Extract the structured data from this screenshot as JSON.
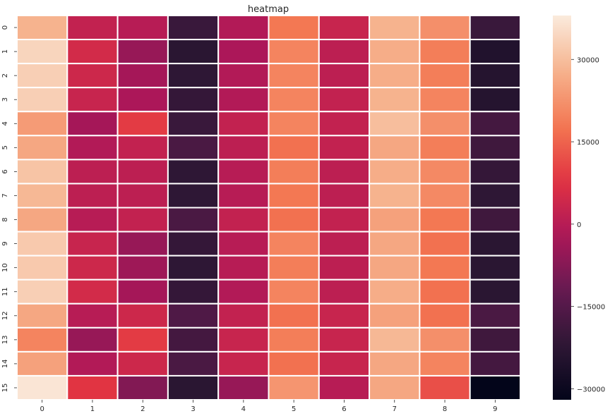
{
  "chart_data": {
    "type": "heatmap",
    "title": "heatmap",
    "xlabel": "",
    "ylabel": "",
    "x_categories": [
      "0",
      "1",
      "2",
      "3",
      "4",
      "5",
      "6",
      "7",
      "8",
      "9"
    ],
    "y_categories": [
      "0",
      "1",
      "2",
      "3",
      "4",
      "5",
      "6",
      "7",
      "8",
      "9",
      "10",
      "11",
      "12",
      "13",
      "14",
      "15"
    ],
    "values": [
      [
        28000,
        2000,
        0,
        -20000,
        -1000,
        18000,
        3000,
        28000,
        22000,
        -20000
      ],
      [
        34000,
        5000,
        -5000,
        -23000,
        -2000,
        20000,
        1000,
        27000,
        19000,
        -25000
      ],
      [
        33000,
        4000,
        -3000,
        -22000,
        -1000,
        20000,
        1000,
        27000,
        19000,
        -24000
      ],
      [
        33000,
        3000,
        -2000,
        -21000,
        -1000,
        20000,
        2000,
        28000,
        20000,
        -24000
      ],
      [
        24000,
        -3000,
        9000,
        -20000,
        2000,
        20000,
        2000,
        30000,
        22000,
        -18000
      ],
      [
        26000,
        -1000,
        2000,
        -17000,
        1000,
        17000,
        2000,
        26000,
        19000,
        -19000
      ],
      [
        31000,
        1000,
        1000,
        -22000,
        0,
        19000,
        1000,
        27000,
        21000,
        -21000
      ],
      [
        29000,
        1000,
        1000,
        -22000,
        0,
        18000,
        1000,
        28000,
        21000,
        -22000
      ],
      [
        26000,
        0,
        2000,
        -17000,
        2000,
        17000,
        2000,
        25000,
        18000,
        -19000
      ],
      [
        32000,
        3000,
        -5000,
        -21000,
        0,
        20000,
        1000,
        26000,
        17000,
        -23000
      ],
      [
        32000,
        4000,
        -4000,
        -22000,
        0,
        19000,
        1000,
        26000,
        18000,
        -23000
      ],
      [
        33000,
        5000,
        -3000,
        -21000,
        -1000,
        20000,
        1000,
        27000,
        17000,
        -23000
      ],
      [
        26000,
        0,
        4000,
        -16000,
        2000,
        17000,
        3000,
        25000,
        17000,
        -17000
      ],
      [
        20000,
        -5000,
        9000,
        -18000,
        3000,
        19000,
        3000,
        29000,
        22000,
        -19000
      ],
      [
        25000,
        -1000,
        4000,
        -17000,
        3000,
        17000,
        3000,
        26000,
        20000,
        -18000
      ],
      [
        37000,
        8000,
        -8000,
        -23000,
        -5000,
        23000,
        0,
        26000,
        12000,
        -32000
      ]
    ],
    "colorbar": {
      "min": -32000,
      "max": 38000,
      "ticks": [
        30000,
        15000,
        0,
        -15000,
        -30000
      ],
      "tick_labels": [
        "30000",
        "15000",
        "0",
        "−15000",
        "−30000"
      ]
    },
    "colormap": "rocket",
    "grid": false,
    "legend": "colorbar-right"
  }
}
